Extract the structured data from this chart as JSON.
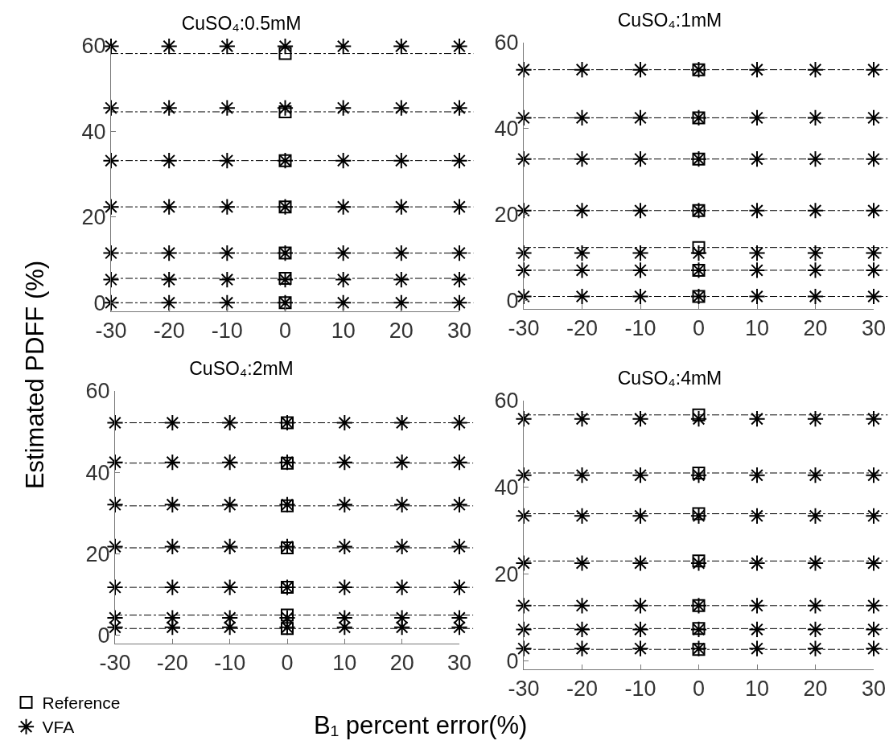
{
  "chart_data": [
    {
      "type": "scatter",
      "title": "CuSO₄:0.5mM",
      "ylabel": "Estimated PDFF (%)",
      "xlim": [
        -30,
        30
      ],
      "xticks": [
        -30,
        -20,
        -10,
        0,
        10,
        20,
        30
      ],
      "ylim": [
        -2,
        60
      ],
      "yticks": [
        0,
        20,
        40,
        60
      ],
      "legend": false,
      "line_style": "dashed",
      "series": [
        {
          "color": "#000000",
          "marker": "square",
          "x": [
            0,
            0,
            0,
            0,
            0,
            0,
            0
          ],
          "values": [
            58.2,
            44.6,
            33.2,
            22.4,
            11.6,
            5.7,
            0
          ]
        },
        {
          "color": "#000000",
          "marker": "cross",
          "x": [
            -30,
            -20,
            -10,
            0,
            10,
            20,
            30,
            -30,
            -20,
            -10,
            0,
            10,
            20,
            30,
            -30,
            -20,
            -10,
            0,
            10,
            20,
            30,
            -30,
            -20,
            -10,
            0,
            10,
            20,
            30,
            -30,
            -20,
            -10,
            0,
            10,
            20,
            30,
            -30,
            -20,
            -10,
            0,
            10,
            20,
            30,
            -30,
            -20,
            -10,
            0,
            10,
            20,
            30
          ],
          "values": [
            59.9,
            59.9,
            59.9,
            59.9,
            59.9,
            59.9,
            59.9,
            45.5,
            45.5,
            45.5,
            45.5,
            45.5,
            45.5,
            45.5,
            33.2,
            33.2,
            33.2,
            33.2,
            33.2,
            33.2,
            33.2,
            22.4,
            22.4,
            22.4,
            22.4,
            22.4,
            22.4,
            22.4,
            11.6,
            11.6,
            11.6,
            11.6,
            11.6,
            11.6,
            11.6,
            5.4,
            5.4,
            5.4,
            5.4,
            5.4,
            5.4,
            5.4,
            0,
            0,
            0,
            0,
            0,
            0,
            0
          ]
        }
      ],
      "ref_lines": [
        {
          "axis": "y",
          "value": 58.2,
          "color": "#000000"
        },
        {
          "axis": "y",
          "value": 44.6,
          "color": "#000000"
        },
        {
          "axis": "y",
          "value": 33.2,
          "color": "#000000"
        },
        {
          "axis": "y",
          "value": 22.4,
          "color": "#000000"
        },
        {
          "axis": "y",
          "value": 11.6,
          "color": "#000000"
        },
        {
          "axis": "y",
          "value": 5.7,
          "color": "#000000"
        },
        {
          "axis": "y",
          "value": 0,
          "color": "#000000"
        }
      ]
    },
    {
      "type": "scatter",
      "title": "CuSO₄:1mM",
      "xlim": [
        -30,
        30
      ],
      "xticks": [
        -30,
        -20,
        -10,
        0,
        10,
        20,
        30
      ],
      "ylim": [
        -2,
        60
      ],
      "yticks": [
        0,
        20,
        40,
        60
      ],
      "legend": false,
      "line_style": "dashed",
      "series": [
        {
          "color": "#000000",
          "marker": "square",
          "x": [
            0,
            0,
            0,
            0,
            0,
            0,
            0
          ],
          "values": [
            53.7,
            42.5,
            32.9,
            20.9,
            12.3,
            7,
            0.9
          ]
        },
        {
          "color": "#000000",
          "marker": "cross",
          "x": [
            -30,
            -20,
            -10,
            0,
            10,
            20,
            30,
            -30,
            -20,
            -10,
            0,
            10,
            20,
            30,
            -30,
            -20,
            -10,
            0,
            10,
            20,
            30,
            -30,
            -20,
            -10,
            0,
            10,
            20,
            30,
            -30,
            -20,
            -10,
            0,
            10,
            20,
            30,
            -30,
            -20,
            -10,
            0,
            10,
            20,
            30,
            -30,
            -20,
            -10,
            0,
            10,
            20,
            30
          ],
          "values": [
            53.7,
            53.7,
            53.7,
            53.7,
            53.7,
            53.7,
            53.7,
            42.5,
            42.5,
            42.5,
            42.5,
            42.5,
            42.5,
            42.5,
            32.9,
            32.9,
            32.9,
            32.9,
            32.9,
            32.9,
            32.9,
            20.9,
            20.9,
            20.9,
            20.9,
            20.9,
            20.9,
            20.9,
            11,
            11,
            11,
            11,
            11,
            11,
            11,
            7,
            7,
            7,
            7,
            7,
            7,
            7,
            0.9,
            0.9,
            0.9,
            0.9,
            0.9,
            0.9,
            0.9
          ]
        }
      ],
      "ref_lines": [
        {
          "axis": "y",
          "value": 53.7,
          "color": "#000000"
        },
        {
          "axis": "y",
          "value": 42.5,
          "color": "#000000"
        },
        {
          "axis": "y",
          "value": 32.9,
          "color": "#000000"
        },
        {
          "axis": "y",
          "value": 20.9,
          "color": "#000000"
        },
        {
          "axis": "y",
          "value": 12.3,
          "color": "#000000"
        },
        {
          "axis": "y",
          "value": 7,
          "color": "#000000"
        },
        {
          "axis": "y",
          "value": 0.9,
          "color": "#000000"
        }
      ]
    },
    {
      "type": "scatter",
      "title": "CuSO₄:2mM",
      "xlabel": "B₁ percent error(%)",
      "xlim": [
        -30,
        30
      ],
      "xticks": [
        -30,
        -20,
        -10,
        0,
        10,
        20,
        30
      ],
      "ylim": [
        -2,
        60
      ],
      "yticks": [
        0,
        20,
        40,
        60
      ],
      "legend": "bottom left",
      "line_style": "dashed",
      "series": [
        {
          "name": "Reference",
          "color": "#000000",
          "marker": "square",
          "x": [
            0,
            0,
            0,
            0,
            0,
            0,
            0
          ],
          "values": [
            52.2,
            42.3,
            31.8,
            21.5,
            11.8,
            5,
            1.7
          ]
        },
        {
          "name": "VFA",
          "color": "#000000",
          "marker": "cross",
          "x": [
            -30,
            -20,
            -10,
            0,
            10,
            20,
            30,
            -30,
            -20,
            -10,
            0,
            10,
            20,
            30,
            -30,
            -20,
            -10,
            0,
            10,
            20,
            30,
            -30,
            -20,
            -10,
            0,
            10,
            20,
            30,
            -30,
            -20,
            -10,
            0,
            10,
            20,
            30,
            -30,
            -20,
            -10,
            0,
            10,
            20,
            30,
            -30,
            -20,
            -10,
            0,
            10,
            20,
            30
          ],
          "values": [
            52.2,
            52.2,
            52.2,
            52.2,
            52.2,
            52.2,
            52.2,
            42.5,
            42.5,
            42.5,
            42.5,
            42.5,
            42.5,
            42.5,
            32.1,
            32.1,
            32.1,
            32.1,
            32.1,
            32.1,
            32.1,
            21.8,
            21.8,
            21.8,
            21.8,
            21.8,
            21.8,
            21.8,
            11.8,
            11.8,
            11.8,
            11.8,
            11.8,
            11.8,
            11.8,
            4.3,
            4.3,
            4.3,
            4.3,
            4.3,
            4.3,
            4.3,
            2,
            2,
            2,
            2,
            2,
            2,
            2
          ]
        }
      ],
      "ref_lines": [
        {
          "axis": "y",
          "value": 52.2,
          "color": "#000000"
        },
        {
          "axis": "y",
          "value": 42.3,
          "color": "#000000"
        },
        {
          "axis": "y",
          "value": 31.8,
          "color": "#000000"
        },
        {
          "axis": "y",
          "value": 21.5,
          "color": "#000000"
        },
        {
          "axis": "y",
          "value": 11.8,
          "color": "#000000"
        },
        {
          "axis": "y",
          "value": 5,
          "color": "#000000"
        },
        {
          "axis": "y",
          "value": 1.7,
          "color": "#000000"
        }
      ]
    },
    {
      "type": "scatter",
      "title": "CuSO₄:4mM",
      "xlim": [
        -30,
        30
      ],
      "xticks": [
        -30,
        -20,
        -10,
        0,
        10,
        20,
        30
      ],
      "ylim": [
        -2,
        60
      ],
      "yticks": [
        0,
        20,
        40,
        60
      ],
      "legend": false,
      "line_style": "dashed",
      "series": [
        {
          "color": "#000000",
          "marker": "square",
          "x": [
            0,
            0,
            0,
            0,
            0,
            0,
            0
          ],
          "values": [
            56.7,
            43.3,
            33.9,
            23,
            12.7,
            7.4,
            2.6
          ]
        },
        {
          "color": "#000000",
          "marker": "cross",
          "x": [
            -30,
            -20,
            -10,
            0,
            10,
            20,
            30,
            -30,
            -20,
            -10,
            0,
            10,
            20,
            30,
            -30,
            -20,
            -10,
            0,
            10,
            20,
            30,
            -30,
            -20,
            -10,
            0,
            10,
            20,
            30,
            -30,
            -20,
            -10,
            0,
            10,
            20,
            30,
            -30,
            -20,
            -10,
            0,
            10,
            20,
            30,
            -30,
            -20,
            -10,
            0,
            10,
            20,
            30
          ],
          "values": [
            55.8,
            55.8,
            55.8,
            55.8,
            55.8,
            55.8,
            55.8,
            42.8,
            42.8,
            42.8,
            42.8,
            42.8,
            42.8,
            42.8,
            33.4,
            33.4,
            33.4,
            33.4,
            33.4,
            33.4,
            33.4,
            22.5,
            22.5,
            22.5,
            22.5,
            22.5,
            22.5,
            22.5,
            12.7,
            12.7,
            12.7,
            12.7,
            12.7,
            12.7,
            12.7,
            7.2,
            7.2,
            7.2,
            7.2,
            7.2,
            7.2,
            7.2,
            2.8,
            2.8,
            2.8,
            2.8,
            2.8,
            2.8,
            2.8
          ]
        }
      ],
      "ref_lines": [
        {
          "axis": "y",
          "value": 56.7,
          "color": "#000000"
        },
        {
          "axis": "y",
          "value": 43.3,
          "color": "#000000"
        },
        {
          "axis": "y",
          "value": 33.9,
          "color": "#000000"
        },
        {
          "axis": "y",
          "value": 23,
          "color": "#000000"
        },
        {
          "axis": "y",
          "value": 12.7,
          "color": "#000000"
        },
        {
          "axis": "y",
          "value": 7.4,
          "color": "#000000"
        },
        {
          "axis": "y",
          "value": 2.6,
          "color": "#000000"
        }
      ]
    }
  ]
}
